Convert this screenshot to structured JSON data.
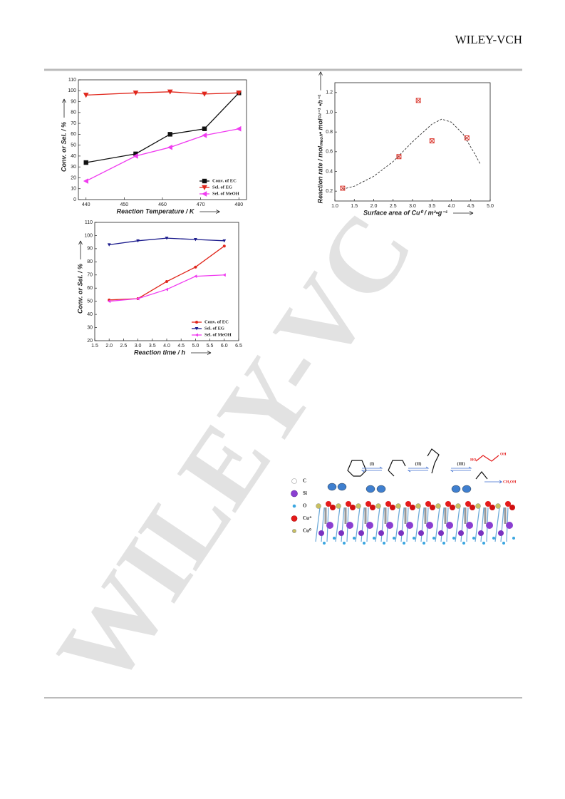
{
  "header": {
    "brand": "WILEY-VCH"
  },
  "watermark": "WILEY-VC",
  "chart_data": [
    {
      "type": "line",
      "xlabel": "Reaction Temperature / K",
      "ylabel": "Conv. or Sel. / %",
      "x": [
        440,
        453,
        462,
        471,
        480
      ],
      "xlim": [
        438,
        482
      ],
      "xticks": [
        440,
        450,
        460,
        470,
        480
      ],
      "ylim": [
        0,
        110
      ],
      "yticks": [
        0,
        10,
        20,
        30,
        40,
        50,
        60,
        70,
        80,
        90,
        100,
        110
      ],
      "legend": "lower right",
      "series": [
        {
          "name": "Conv. of EC",
          "color": "#111111",
          "marker": "square",
          "values": [
            34,
            42,
            60,
            65,
            98
          ]
        },
        {
          "name": "Sel. of  EG",
          "color": "#e0261b",
          "marker": "triangle-down",
          "values": [
            96,
            98,
            99,
            97,
            98
          ]
        },
        {
          "name": "Sel. of  MeOH",
          "color": "#f03cf0",
          "marker": "triangle-left",
          "values": [
            17,
            40,
            48,
            59,
            65
          ]
        }
      ]
    },
    {
      "type": "scatter",
      "xlabel": "Surface area of Cu⁰ / m²•g⁻¹",
      "ylabel": "Reaction rate / molₘₑₒₕ• molᶜᵘ⁻¹ •h⁻¹",
      "x": [
        1.2,
        2.65,
        3.15,
        3.5,
        4.4
      ],
      "xlim": [
        1.0,
        5.0
      ],
      "xticks": [
        {
          "value": 1.0,
          "label": "1.0"
        },
        1.5,
        {
          "value": 2.0,
          "label": "2.0"
        },
        2.5,
        {
          "value": 3.0,
          "label": "3.0"
        },
        3.5,
        {
          "value": 4.0,
          "label": "4.0"
        },
        4.5,
        {
          "value": 5.0,
          "label": "5.0"
        }
      ],
      "ylim": [
        0.1,
        1.3
      ],
      "yticks": [
        0.2,
        0.4,
        0.6,
        0.8,
        {
          "value": 1.0,
          "label": "1.0"
        },
        1.2
      ],
      "series": [
        {
          "color": "#d9342b",
          "marker": "square-x",
          "values": [
            0.23,
            0.55,
            1.12,
            0.71,
            0.74
          ]
        }
      ],
      "fit": {
        "color": "#333333",
        "x": [
          1.2,
          1.5,
          2.0,
          2.5,
          3.0,
          3.5,
          3.75,
          4.0,
          4.3,
          4.6,
          4.75
        ],
        "values": [
          0.22,
          0.25,
          0.35,
          0.5,
          0.7,
          0.88,
          0.93,
          0.9,
          0.78,
          0.58,
          0.47
        ]
      }
    },
    {
      "type": "line",
      "xlabel": "Reaction time / h",
      "ylabel": "Conv. or Sel. / %",
      "x": [
        2,
        3,
        4,
        5,
        6
      ],
      "xlim": [
        1.5,
        6.5
      ],
      "xticks": [
        1.5,
        {
          "value": 2,
          "label": "2.0"
        },
        2.5,
        {
          "value": 3,
          "label": "3.0"
        },
        3.5,
        {
          "value": 4,
          "label": "4.0"
        },
        4.5,
        {
          "value": 5,
          "label": "5.0"
        },
        5.5,
        {
          "value": 6,
          "label": "6.0"
        },
        6.5
      ],
      "ylim": [
        20,
        110
      ],
      "yticks": [
        20,
        30,
        40,
        50,
        60,
        70,
        80,
        90,
        100,
        110
      ],
      "legend": "lower right",
      "series": [
        {
          "name": "Conv. of EC",
          "color": "#e0261b",
          "marker": "circle",
          "values": [
            51,
            52,
            65,
            76,
            92
          ]
        },
        {
          "name": "Sel. of  EG",
          "color": "#1a1a8c",
          "marker": "triangle-down",
          "values": [
            93,
            96,
            98,
            97,
            96
          ]
        },
        {
          "name": "Sel. of  MeOH",
          "color": "#f03cf0",
          "marker": "triangle-left",
          "values": [
            50,
            52,
            59,
            69,
            70
          ]
        }
      ]
    }
  ],
  "diagram": {
    "legend": [
      "C",
      "Si",
      "O",
      "Cu⁺",
      "Cu⁰"
    ],
    "steps": [
      "(I)",
      "(II)",
      "(III)"
    ],
    "product": "CH₃OH",
    "glycol": [
      "HO",
      "OH"
    ]
  }
}
